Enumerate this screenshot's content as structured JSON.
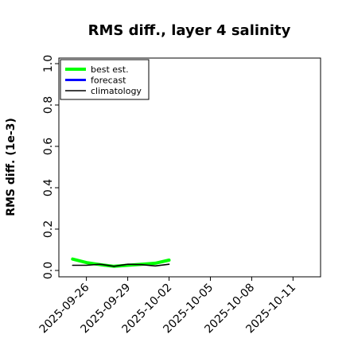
{
  "chart_data": {
    "type": "line",
    "title": "RMS diff., layer 4 salinity",
    "ylabel": "RMS diff. (1e-3)",
    "xlabel": "",
    "ylim": [
      0,
      1.0
    ],
    "yticks": [
      "0.0",
      "0.2",
      "0.4",
      "0.6",
      "0.8",
      "1.0"
    ],
    "x_range": [
      "2025-09-24",
      "2025-10-13"
    ],
    "xticks": [
      {
        "label": "2025-09-26",
        "color": "#000000"
      },
      {
        "label": "2025-09-29",
        "color": "#000000"
      },
      {
        "label": "2025-10-02",
        "color": "#228B22"
      },
      {
        "label": "2025-10-05",
        "color": "#000000"
      },
      {
        "label": "2025-10-08",
        "color": "#000000"
      },
      {
        "label": "2025-10-11",
        "color": "#000000"
      }
    ],
    "legend_position": "top-left",
    "series": [
      {
        "name": "best est.",
        "color": "#00ff00",
        "x": [
          "2025-09-25",
          "2025-09-26",
          "2025-09-27",
          "2025-09-28",
          "2025-09-29",
          "2025-09-30",
          "2025-10-01",
          "2025-10-02"
        ],
        "values": [
          0.055,
          0.038,
          0.028,
          0.02,
          0.025,
          0.03,
          0.035,
          0.05
        ]
      },
      {
        "name": "forecast",
        "color": "#0000ff",
        "x": [],
        "values": []
      },
      {
        "name": "climatology",
        "color": "#000000",
        "x": [
          "2025-09-25",
          "2025-09-26",
          "2025-09-27",
          "2025-09-28",
          "2025-09-29",
          "2025-09-30",
          "2025-10-01",
          "2025-10-02"
        ],
        "values": [
          0.025,
          0.025,
          0.03,
          0.02,
          0.03,
          0.028,
          0.022,
          0.03
        ]
      }
    ]
  }
}
